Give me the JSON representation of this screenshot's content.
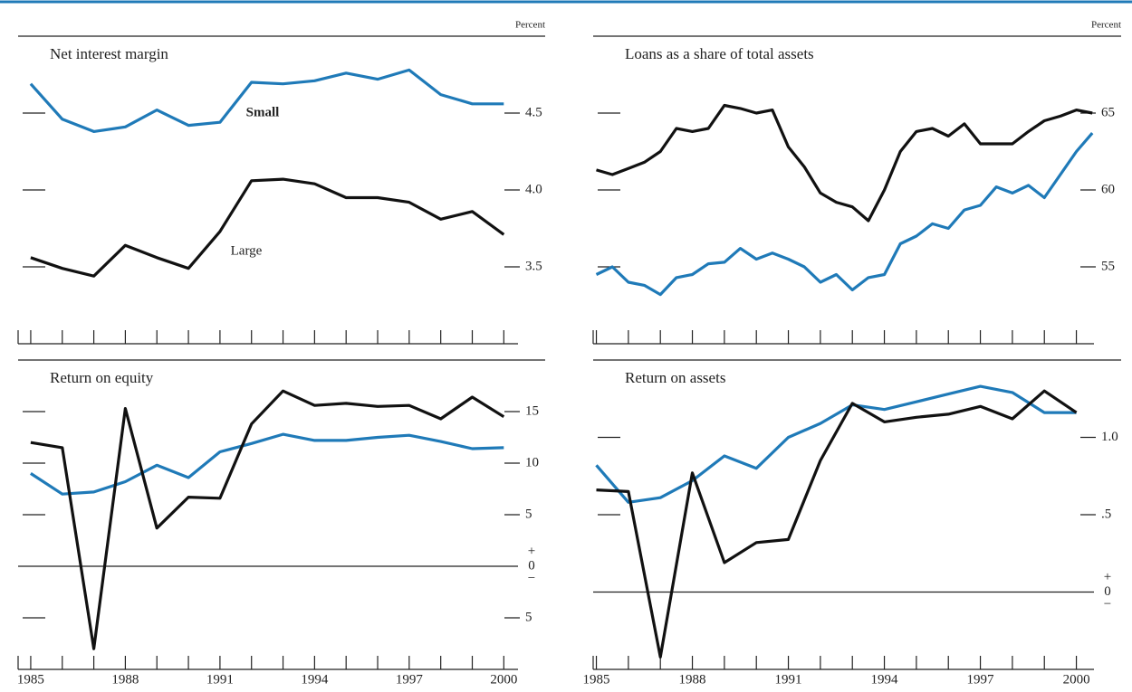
{
  "chart_data": [
    {
      "type": "line",
      "title": "Net interest margin",
      "unit": "Percent",
      "x": [
        1985,
        1986,
        1987,
        1988,
        1989,
        1990,
        1991,
        1992,
        1993,
        1994,
        1995,
        1996,
        1997,
        1998,
        1999,
        2000
      ],
      "series": [
        {
          "name": "Small",
          "color": "#1f7ab8",
          "values": [
            4.69,
            4.46,
            4.38,
            4.41,
            4.52,
            4.42,
            4.44,
            4.7,
            4.69,
            4.71,
            4.76,
            4.72,
            4.78,
            4.62,
            4.56,
            4.56
          ]
        },
        {
          "name": "Large",
          "color": "#111111",
          "values": [
            3.56,
            3.49,
            3.44,
            3.64,
            3.56,
            3.49,
            3.73,
            4.06,
            4.07,
            4.04,
            3.95,
            3.95,
            3.92,
            3.81,
            3.86,
            3.71
          ]
        }
      ],
      "xlim": [
        1984.6,
        2000.45
      ],
      "xminorticks": [
        1985,
        1986,
        1987,
        1988,
        1989,
        1990,
        1991,
        1992,
        1993,
        1994,
        1995,
        1996,
        1997,
        1998,
        1999,
        2000
      ],
      "ylim": [
        3,
        5
      ],
      "yticks": [
        3.5,
        {
          "value": 4,
          "label": "4.0"
        },
        4.5
      ]
    },
    {
      "type": "line",
      "title": "Loans as a share of total assets",
      "unit": "Percent",
      "x": [
        1985,
        1985.5,
        1986,
        1986.5,
        1987,
        1987.5,
        1988,
        1988.5,
        1989,
        1989.5,
        1990,
        1990.5,
        1991,
        1991.5,
        1992,
        1992.5,
        1993,
        1993.5,
        1994,
        1994.5,
        1995,
        1995.5,
        1996,
        1996.5,
        1997,
        1997.5,
        1998,
        1998.5,
        1999,
        1999.5,
        2000,
        2000.5
      ],
      "series": [
        {
          "color": "#111111",
          "values": [
            61.3,
            61.0,
            61.4,
            61.8,
            62.5,
            64.0,
            63.8,
            64.0,
            65.5,
            65.3,
            65.0,
            65.2,
            62.8,
            61.5,
            59.8,
            59.2,
            58.9,
            58.0,
            60.0,
            62.5,
            63.8,
            64.0,
            63.5,
            64.3,
            63.0,
            63.0,
            63.0,
            63.8,
            64.5,
            64.8,
            65.2,
            65.0
          ]
        },
        {
          "color": "#1f7ab8",
          "values": [
            54.5,
            55.0,
            54.0,
            53.8,
            53.2,
            54.3,
            54.5,
            55.2,
            55.3,
            56.2,
            55.5,
            55.9,
            55.5,
            55.0,
            54.0,
            54.5,
            53.5,
            54.3,
            54.5,
            56.5,
            57.0,
            57.8,
            57.5,
            58.7,
            59.0,
            60.2,
            59.8,
            60.3,
            59.5,
            61.0,
            62.5,
            63.7
          ]
        }
      ],
      "xlim": [
        1984.9,
        2000.55
      ],
      "xminorticks": [
        1985,
        1986,
        1987,
        1988,
        1989,
        1990,
        1991,
        1992,
        1993,
        1994,
        1995,
        1996,
        1997,
        1998,
        1999,
        2000
      ],
      "ylim": [
        50,
        70
      ],
      "yticks": [
        55,
        60,
        65
      ]
    },
    {
      "type": "line",
      "title": "Return on equity",
      "x": [
        1985,
        1986,
        1987,
        1988,
        1989,
        1990,
        1991,
        1992,
        1993,
        1994,
        1995,
        1996,
        1997,
        1998,
        1999,
        2000
      ],
      "series": [
        {
          "color": "#1f7ab8",
          "values": [
            9.0,
            7.0,
            7.2,
            8.2,
            9.8,
            8.6,
            11.1,
            11.9,
            12.8,
            12.2,
            12.2,
            12.5,
            12.7,
            12.1,
            11.4,
            11.5
          ]
        },
        {
          "color": "#111111",
          "values": [
            12.0,
            11.5,
            -8.0,
            15.3,
            3.7,
            6.7,
            6.6,
            13.8,
            17.0,
            15.6,
            15.8,
            15.5,
            15.6,
            14.3,
            16.4,
            14.5
          ]
        }
      ],
      "xlim": [
        1984.6,
        2000.45
      ],
      "xticks": [
        1985,
        1988,
        1991,
        1994,
        1997,
        2000
      ],
      "xminorticks": [
        1985,
        1986,
        1987,
        1988,
        1989,
        1990,
        1991,
        1992,
        1993,
        1994,
        1995,
        1996,
        1997,
        1998,
        1999,
        2000
      ],
      "ylim": [
        -10,
        20
      ],
      "yticks": [
        {
          "value": -5,
          "label": "5"
        },
        0,
        5,
        10,
        15
      ],
      "zero_line": true,
      "zero_signs": [
        "+",
        "−"
      ]
    },
    {
      "type": "line",
      "title": "Return on assets",
      "x": [
        1985,
        1986,
        1987,
        1988,
        1989,
        1990,
        1991,
        1992,
        1993,
        1994,
        1995,
        1996,
        1997,
        1998,
        1999,
        2000
      ],
      "series": [
        {
          "color": "#1f7ab8",
          "values": [
            0.82,
            0.58,
            0.61,
            0.72,
            0.88,
            0.8,
            1.0,
            1.09,
            1.21,
            1.18,
            1.23,
            1.28,
            1.33,
            1.29,
            1.16,
            1.16
          ]
        },
        {
          "color": "#111111",
          "values": [
            0.66,
            0.65,
            -0.42,
            0.77,
            0.19,
            0.32,
            0.34,
            0.85,
            1.22,
            1.1,
            1.13,
            1.15,
            1.2,
            1.12,
            1.3,
            1.16
          ]
        }
      ],
      "xlim": [
        1984.9,
        2000.55
      ],
      "xticks": [
        1985,
        1988,
        1991,
        1994,
        1997,
        2000
      ],
      "xminorticks": [
        1985,
        1986,
        1987,
        1988,
        1989,
        1990,
        1991,
        1992,
        1993,
        1994,
        1995,
        1996,
        1997,
        1998,
        1999,
        2000
      ],
      "ylim": [
        -0.5,
        1.5
      ],
      "yticks": [
        0,
        {
          "value": 0.5,
          "label": ".5"
        },
        {
          "value": 1,
          "label": "1.0"
        }
      ],
      "zero_line": true,
      "zero_signs": [
        "+",
        "−"
      ]
    }
  ]
}
